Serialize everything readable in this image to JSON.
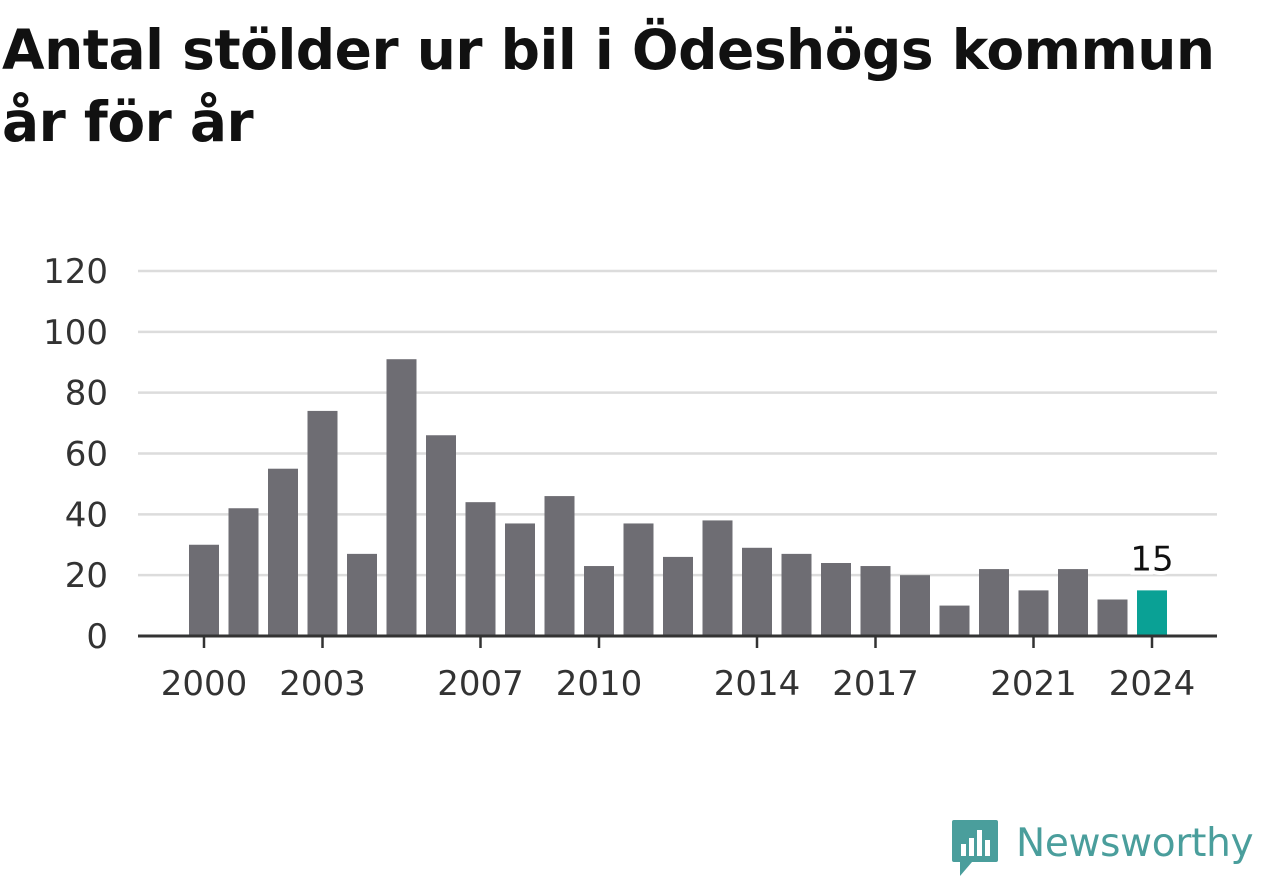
{
  "title": "Antal stölder ur bil i Ödeshögs kommun år för år",
  "logo_text": "Newsworthy",
  "colors": {
    "bar": "#6e6d73",
    "highlight": "#0aa195",
    "grid": "#dcdcdc",
    "axis": "#333333",
    "logo": "#4a9e9c"
  },
  "chart_data": {
    "type": "bar",
    "categories": [
      "2000",
      "2001",
      "2002",
      "2003",
      "2004",
      "2005",
      "2006",
      "2007",
      "2008",
      "2009",
      "2010",
      "2011",
      "2012",
      "2013",
      "2014",
      "2015",
      "2016",
      "2017",
      "2018",
      "2019",
      "2020",
      "2021",
      "2022",
      "2023",
      "2024"
    ],
    "values": [
      30,
      42,
      55,
      74,
      27,
      91,
      66,
      44,
      37,
      46,
      23,
      37,
      26,
      38,
      29,
      27,
      24,
      23,
      20,
      10,
      22,
      15,
      22,
      12,
      15
    ],
    "highlight_index": 24,
    "highlight_label": "15",
    "ylim": [
      0,
      120
    ],
    "yticks": [
      "0",
      "20",
      "40",
      "60",
      "80",
      "100",
      "120"
    ],
    "xticks": [
      "2000",
      "2003",
      "2007",
      "2010",
      "2014",
      "2017",
      "2021",
      "2024"
    ],
    "grid": true,
    "title": "Antal stölder ur bil i Ödeshögs kommun år för år",
    "xlabel": "",
    "ylabel": ""
  }
}
